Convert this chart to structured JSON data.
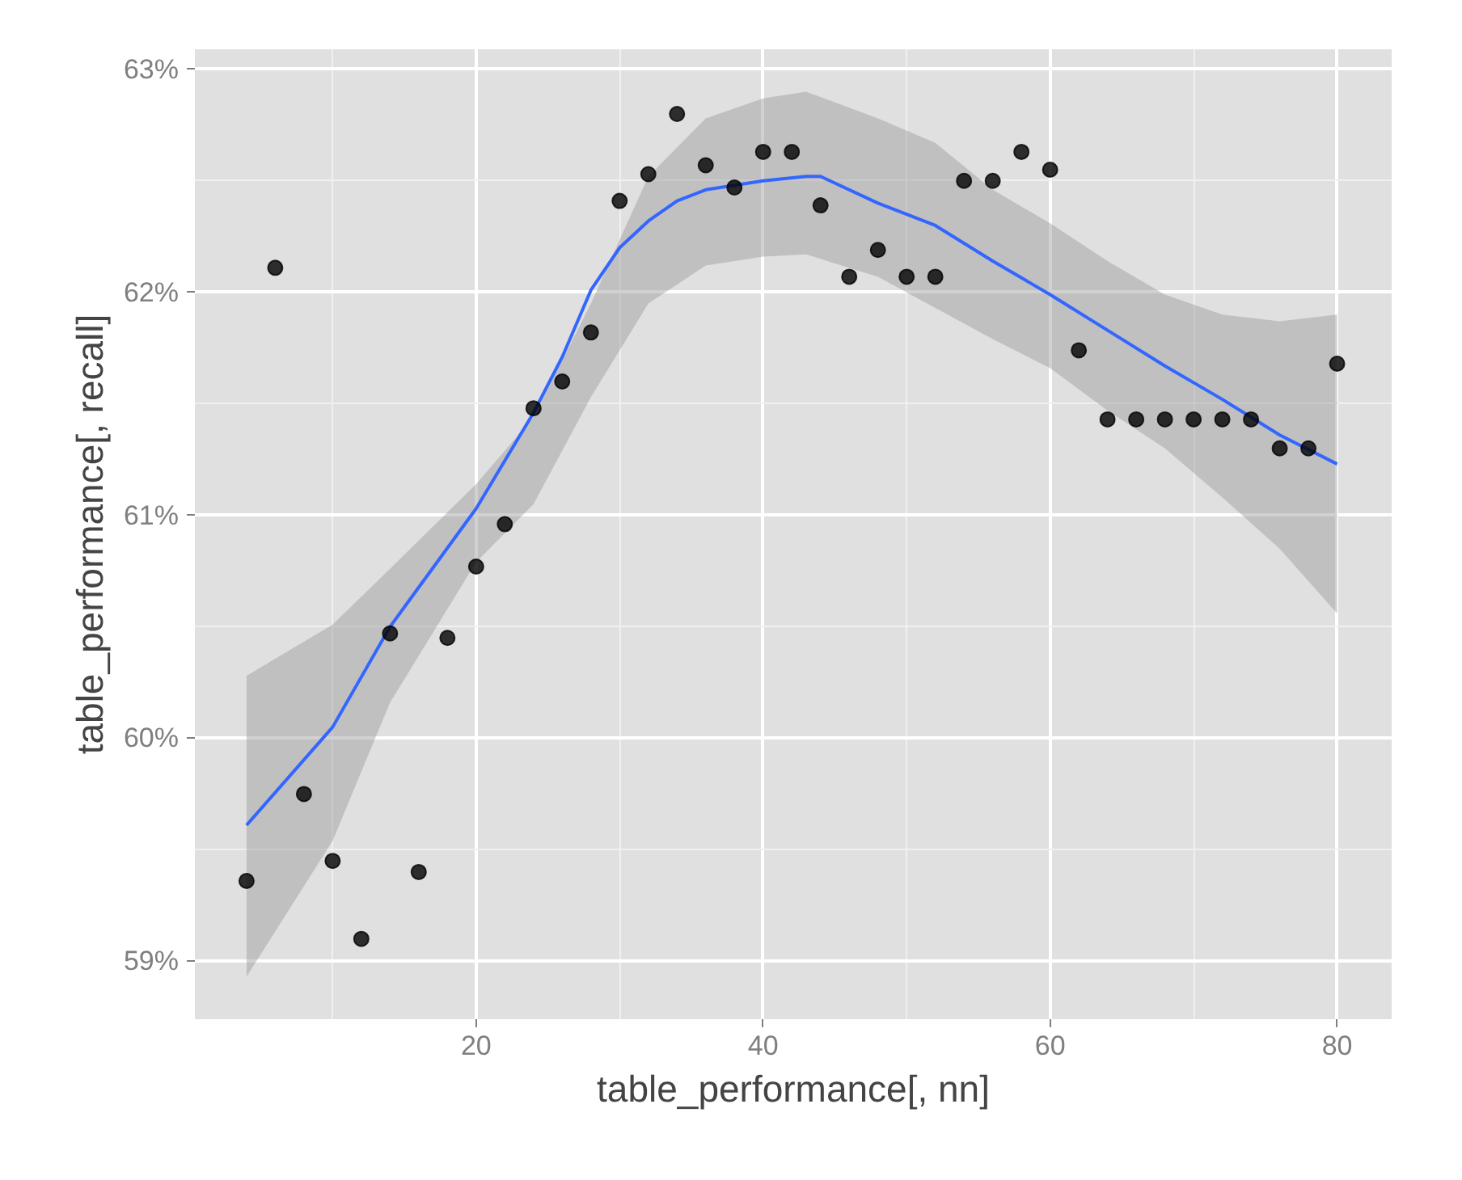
{
  "chart_data": {
    "type": "scatter",
    "xlabel": "table_performance[, nn]",
    "ylabel": "table_performance[, recall]",
    "xlim": [
      0.4,
      83.8
    ],
    "ylim": [
      58.74,
      63.09
    ],
    "xticks": [
      20,
      40,
      60,
      80
    ],
    "yticks": [
      {
        "value": 59,
        "label": "59%"
      },
      {
        "value": 60,
        "label": "60%"
      },
      {
        "value": 61,
        "label": "61%"
      },
      {
        "value": 62,
        "label": "62%"
      },
      {
        "value": 63,
        "label": "63%"
      }
    ],
    "grid": true,
    "series": [
      {
        "marker": "circle",
        "color": "#000000",
        "x": [
          4,
          6,
          8,
          10,
          12,
          14,
          16,
          18,
          20,
          22,
          24,
          26,
          28,
          30,
          32,
          34,
          36,
          38,
          40,
          42,
          44,
          46,
          48,
          50,
          52,
          54,
          56,
          58,
          60,
          62,
          64,
          66,
          68,
          70,
          72,
          74,
          76,
          78,
          80
        ],
        "values": [
          59.36,
          62.11,
          59.75,
          59.45,
          59.1,
          60.47,
          59.4,
          60.45,
          60.77,
          60.96,
          61.48,
          61.6,
          61.82,
          62.41,
          62.53,
          62.8,
          62.57,
          62.47,
          62.63,
          62.63,
          62.39,
          62.07,
          62.19,
          62.07,
          62.07,
          62.5,
          62.5,
          62.63,
          62.55,
          61.74,
          61.43,
          61.43,
          61.43,
          61.43,
          61.43,
          61.43,
          61.3,
          61.3,
          61.68
        ]
      },
      {
        "type": "line",
        "marker": "none",
        "color": "#3366ff",
        "x": [
          4,
          10,
          14,
          20,
          24,
          26,
          28,
          30,
          32,
          34,
          36,
          40,
          43,
          44,
          48,
          52,
          56,
          60,
          64,
          68,
          72,
          76,
          80
        ],
        "values": [
          59.61,
          60.05,
          60.5,
          61.03,
          61.46,
          61.71,
          62.01,
          62.2,
          62.32,
          62.41,
          62.46,
          62.5,
          62.52,
          62.52,
          62.4,
          62.3,
          62.14,
          61.99,
          61.83,
          61.67,
          61.52,
          61.36,
          61.23
        ],
        "lower": [
          58.93,
          59.54,
          60.16,
          60.79,
          61.05,
          null,
          61.53,
          null,
          61.95,
          null,
          62.12,
          62.16,
          62.17,
          null,
          62.07,
          61.93,
          61.79,
          61.66,
          61.47,
          61.3,
          61.08,
          60.85,
          60.56
        ],
        "upper": [
          60.28,
          60.51,
          60.76,
          61.14,
          61.44,
          null,
          61.95,
          null,
          62.52,
          null,
          62.78,
          62.87,
          62.9,
          null,
          62.78,
          62.67,
          62.46,
          62.31,
          62.14,
          61.99,
          61.9,
          61.87,
          61.9
        ]
      }
    ]
  }
}
